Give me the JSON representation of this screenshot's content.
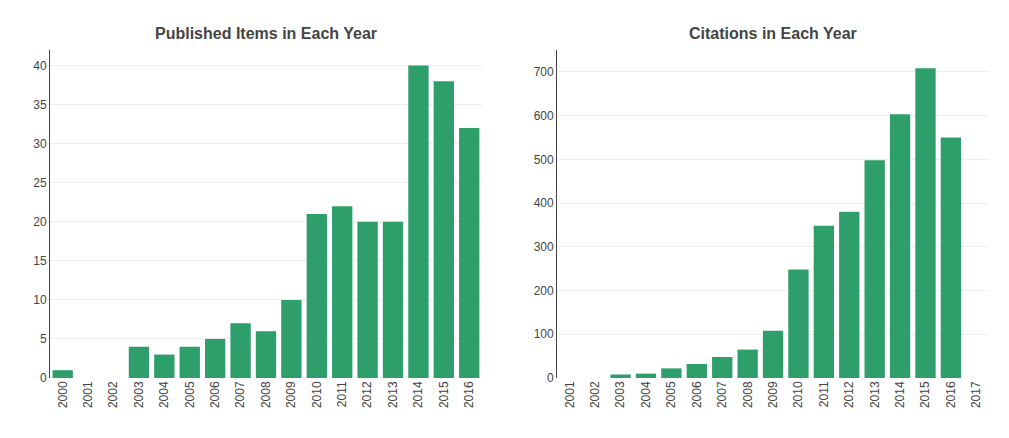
{
  "chart_data": [
    {
      "type": "bar",
      "title": "Published Items in Each Year",
      "categories": [
        "2000",
        "2001",
        "2002",
        "2003",
        "2004",
        "2005",
        "2006",
        "2007",
        "2008",
        "2009",
        "2010",
        "2011",
        "2012",
        "2013",
        "2014",
        "2015",
        "2016"
      ],
      "values": [
        1,
        0,
        0,
        4,
        3,
        4,
        5,
        7,
        6,
        10,
        21,
        22,
        20,
        20,
        40,
        38,
        32
      ],
      "color": "#2e9e6b",
      "ylim": [
        0,
        42
      ],
      "yticks": [
        0,
        5,
        10,
        15,
        20,
        25,
        30,
        35,
        40
      ],
      "grid": true
    },
    {
      "type": "bar",
      "title": "Citations in Each Year",
      "categories": [
        "2001",
        "2002",
        "2003",
        "2004",
        "2005",
        "2006",
        "2007",
        "2008",
        "2009",
        "2010",
        "2011",
        "2012",
        "2013",
        "2014",
        "2015",
        "2016",
        "2017"
      ],
      "values": [
        0,
        0,
        8,
        10,
        22,
        32,
        48,
        65,
        108,
        248,
        348,
        380,
        498,
        603,
        708,
        550,
        0
      ],
      "color": "#2e9e6b",
      "ylim": [
        0,
        750
      ],
      "yticks": [
        0,
        100,
        200,
        300,
        400,
        500,
        600,
        700
      ],
      "grid": true
    }
  ]
}
